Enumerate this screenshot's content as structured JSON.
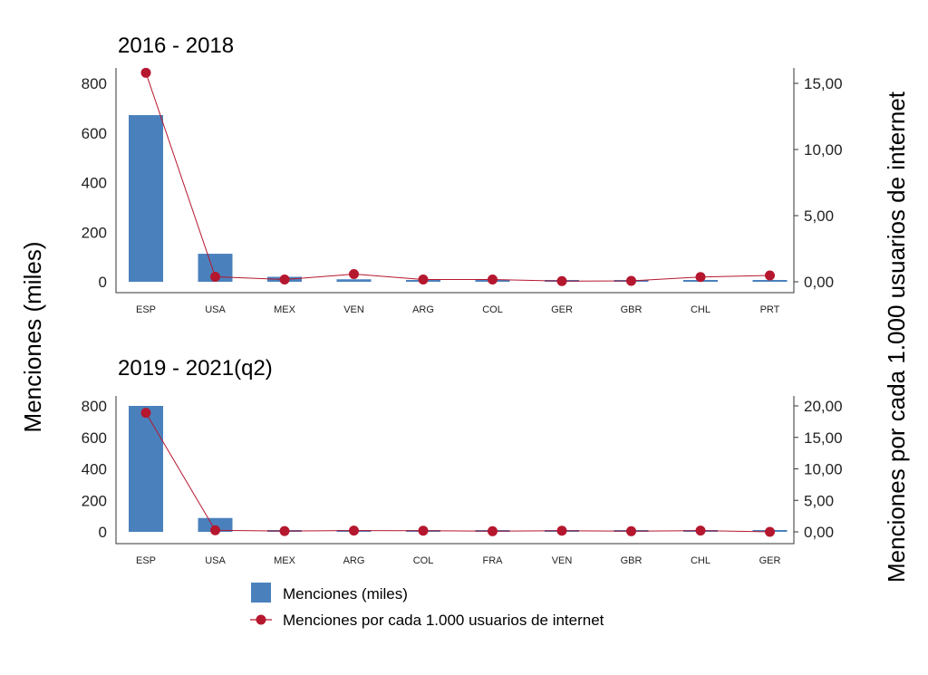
{
  "chart_data": [
    {
      "type": "bar+line",
      "title": "2016 - 2018",
      "categories": [
        "ESP",
        "USA",
        "MEX",
        "VEN",
        "ARG",
        "COL",
        "GER",
        "GBR",
        "CHL",
        "PRT"
      ],
      "series": [
        {
          "name": "Menciones (miles)",
          "axis": "left",
          "type": "bar",
          "values": [
            672,
            113,
            20,
            10,
            7,
            7,
            5,
            5,
            4,
            4
          ]
        },
        {
          "name": "Menciones por cada 1.000 usuarios de internet",
          "axis": "right",
          "type": "line",
          "values": [
            15.8,
            0.38,
            0.17,
            0.58,
            0.17,
            0.17,
            0.05,
            0.07,
            0.36,
            0.48
          ]
        }
      ],
      "ylim_left": [
        0,
        800
      ],
      "yticks_left": [
        "0",
        "200",
        "400",
        "600",
        "800"
      ],
      "ylim_right": [
        0,
        15
      ],
      "yticks_right": [
        "0,00",
        "5,00",
        "10,00",
        "15,00"
      ]
    },
    {
      "type": "bar+line",
      "title": "2019 - 2021(q2)",
      "categories": [
        "ESP",
        "USA",
        "MEX",
        "ARG",
        "COL",
        "FRA",
        "VEN",
        "GBR",
        "CHL",
        "GER"
      ],
      "series": [
        {
          "name": "Menciones (miles)",
          "axis": "left",
          "type": "bar",
          "values": [
            800,
            88,
            5,
            5,
            5,
            4,
            4,
            4,
            4,
            3
          ]
        },
        {
          "name": "Menciones por cada 1.000 usuarios de internet",
          "axis": "right",
          "type": "line",
          "values": [
            18.9,
            0.25,
            0.12,
            0.2,
            0.18,
            0.1,
            0.18,
            0.1,
            0.2,
            0.0
          ]
        }
      ],
      "ylim_left": [
        0,
        800
      ],
      "yticks_left": [
        "0",
        "200",
        "400",
        "600",
        "800"
      ],
      "ylim_right": [
        0,
        20
      ],
      "yticks_right": [
        "0,00",
        "5,00",
        "10,00",
        "15,00",
        "20,00"
      ]
    }
  ],
  "ylabel_left": "Menciones (miles)",
  "ylabel_right": "Menciones por cada 1.000 usuarios de internet",
  "legend": [
    "Menciones (miles)",
    "Menciones por cada 1.000 usuarios de internet"
  ],
  "colors": {
    "bar": "#4a81bd",
    "line": "#b5172f"
  }
}
